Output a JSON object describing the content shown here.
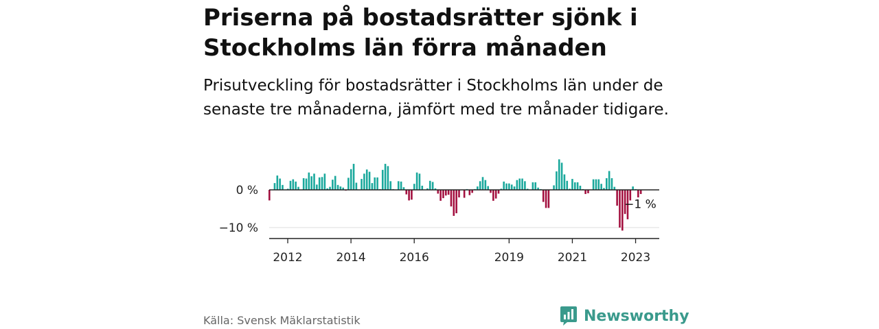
{
  "header": {
    "title": "Priserna på bostadsrätter sjönk i Stockholms län förra månaden",
    "subtitle": "Prisutveckling för bostadsrätter i Stockholms län under de senaste tre månaderna, jämfört med tre månader tidigare."
  },
  "footer": {
    "source": "Källa: Svensk Mäklarstatistik",
    "brand": "Newsworthy"
  },
  "colors": {
    "positive": "#1aa89c",
    "negative": "#a3103f",
    "brand": "#3a9a8c"
  },
  "chart_data": {
    "type": "bar",
    "title": "",
    "xlabel": "",
    "ylabel": "",
    "ylim": [
      -12,
      8
    ],
    "y_ticks": [
      {
        "value": 0,
        "label": "0 %"
      },
      {
        "value": -10,
        "label": "−10 %"
      }
    ],
    "x_ticks": [
      {
        "value": 2012,
        "label": "2012"
      },
      {
        "value": 2014,
        "label": "2014"
      },
      {
        "value": 2016,
        "label": "2016"
      },
      {
        "value": 2019,
        "label": "2019"
      },
      {
        "value": 2021,
        "label": "2021"
      },
      {
        "value": 2023,
        "label": "2023"
      }
    ],
    "start_year": 2011.42,
    "end_year": 2023.25,
    "bar_spacing_years": 0.0833,
    "annotation": {
      "label": "−1 %",
      "value": -1
    },
    "values": [
      -2.8,
      0,
      1.8,
      3.8,
      3.0,
      1.3,
      0,
      0.3,
      2.4,
      2.8,
      2.2,
      0.8,
      0,
      3.1,
      3.0,
      4.6,
      3.6,
      4.3,
      1.4,
      3.3,
      3.4,
      4.3,
      0.4,
      0.8,
      2.7,
      3.7,
      1.3,
      0.9,
      0.6,
      -0.2,
      3.2,
      5.5,
      6.9,
      1.9,
      0.1,
      2.9,
      4.3,
      5.4,
      4.8,
      1.8,
      3.3,
      3.3,
      0.2,
      5.3,
      6.9,
      6.3,
      2.3,
      0.2,
      0,
      2.3,
      2.2,
      0.7,
      -1.2,
      -2.8,
      -2.6,
      1.6,
      4.6,
      4.3,
      1.1,
      0.1,
      0.4,
      2.4,
      2.1,
      0.4,
      -1.0,
      -2.9,
      -2.2,
      -1.5,
      -1.3,
      -4.4,
      -6.9,
      -6.2,
      -2.0,
      0.1,
      -2.1,
      0.2,
      -1.4,
      -0.8,
      0.2,
      0.9,
      2.3,
      3.4,
      2.6,
      1.0,
      -0.8,
      -2.9,
      -2.3,
      -1.0,
      0.3,
      2.2,
      1.7,
      1.7,
      1.4,
      0.9,
      2.6,
      3.0,
      3.0,
      2.3,
      0.3,
      0.1,
      2.0,
      2.0,
      0.6,
      0.2,
      -3.2,
      -4.8,
      -4.8,
      0.1,
      1.2,
      4.9,
      8.1,
      7.2,
      4.1,
      2.4,
      0.3,
      2.9,
      2.0,
      2.0,
      1.1,
      0.2,
      -1.1,
      -0.9,
      0.1,
      2.8,
      2.8,
      2.8,
      1.6,
      0.5,
      3.1,
      5.0,
      3.1,
      0.8,
      -4.2,
      -10.0,
      -10.8,
      -6.4,
      -7.8,
      -2.8,
      0.9,
      0.2,
      -2.0,
      -1.1
    ]
  }
}
